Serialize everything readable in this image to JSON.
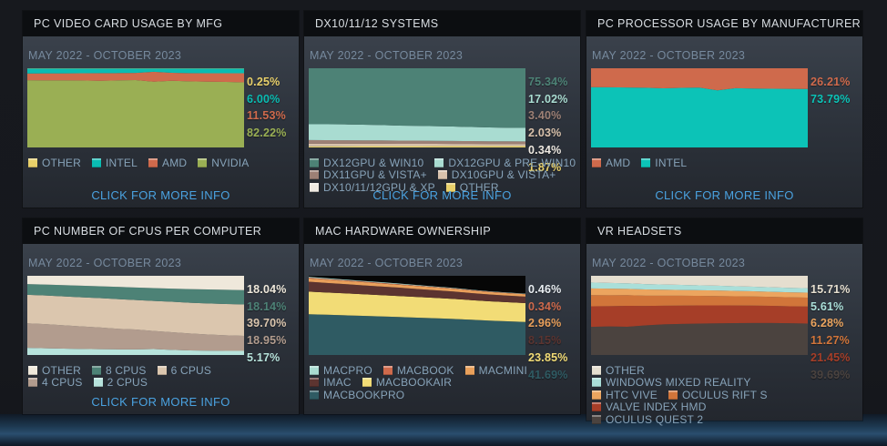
{
  "shared": {
    "more_info_label": "CLICK FOR MORE INFO",
    "date_range": "MAY 2022 - OCTOBER 2023"
  },
  "colors": {
    "link": "#4aa2e0",
    "date_text": "#76899d",
    "legend_text": "#87a3b9",
    "panel_title_bg": "#0c0e11",
    "page_glow": "#2a4e6e"
  },
  "panels": [
    {
      "title": "PC VIDEO CARD USAGE BY MFG",
      "date_range": "MAY 2022 - OCTOBER 2023",
      "has_more_info": true
    },
    {
      "title": "DX10/11/12 SYSTEMS",
      "date_range": "MAY 2022 - OCTOBER 2023",
      "has_more_info": true
    },
    {
      "title": "PC PROCESSOR USAGE BY MANUFACTURER",
      "date_range": "MAY 2022 - OCTOBER 2023",
      "has_more_info": true
    },
    {
      "title": "PC NUMBER OF CPUS PER COMPUTER",
      "date_range": "MAY 2022 - OCTOBER 2023",
      "has_more_info": true
    },
    {
      "title": "MAC HARDWARE OWNERSHIP",
      "date_range": "MAY 2022 - OCTOBER 2023",
      "has_more_info": false
    },
    {
      "title": "VR HEADSETS",
      "date_range": "MAY 2022 - OCTOBER 2023",
      "has_more_info": false
    }
  ],
  "chart_data": [
    {
      "type": "area",
      "stacked": true,
      "title": "PC VIDEO CARD USAGE BY MFG",
      "x_range": [
        "MAY 2022",
        "OCTOBER 2023"
      ],
      "ylim": [
        0,
        100
      ],
      "grid": false,
      "legend_position": "below",
      "series": [
        {
          "name": "OTHER",
          "color": "#e8d06a",
          "value_label": "0.25%",
          "legend_row": 0,
          "values": [
            0.3,
            0.3,
            0.3,
            0.3,
            0.3,
            0.3,
            0.3,
            0.3,
            0.3,
            0.3,
            0.28,
            0.26,
            0.25
          ]
        },
        {
          "name": "INTEL",
          "color": "#0abcb2",
          "value_label": "6.00%",
          "legend_row": 0,
          "values": [
            6.3,
            6.2,
            6.1,
            6.0,
            5.9,
            5.8,
            5.6,
            4.2,
            5.5,
            5.9,
            6.0,
            6.0,
            6.0
          ]
        },
        {
          "name": "AMD",
          "color": "#cf6a4c",
          "value_label": "11.53%",
          "legend_row": 0,
          "values": [
            8.5,
            8.7,
            8.9,
            9.1,
            9.6,
            9.2,
            9.0,
            12.5,
            10.0,
            10.3,
            10.6,
            11.0,
            11.53
          ]
        },
        {
          "name": "NVIDIA",
          "color": "#9aaf54",
          "value_label": "82.22%",
          "legend_row": 0,
          "values": [
            84.9,
            84.8,
            84.7,
            84.6,
            84.2,
            84.7,
            85.1,
            83.0,
            84.2,
            83.5,
            83.12,
            82.74,
            82.22
          ]
        }
      ]
    },
    {
      "type": "area",
      "stacked": true,
      "title": "DX10/11/12 SYSTEMS",
      "x_range": [
        "MAY 2022",
        "OCTOBER 2023"
      ],
      "ylim": [
        0,
        100
      ],
      "grid": false,
      "legend_position": "below",
      "series": [
        {
          "name": "DX12GPU & WIN10",
          "color": "#4d8276",
          "value_label": "75.34%",
          "legend_row": 0,
          "values": [
            70.7,
            70.65,
            70.9,
            71.3,
            71.65,
            72.4,
            72.65,
            73.1,
            73.62,
            74.19,
            74.7,
            75.09,
            75.34
          ]
        },
        {
          "name": "DX12GPU & PRE-WIN10",
          "color": "#a9dcd1",
          "value_label": "17.02%",
          "legend_row": 0,
          "values": [
            20.0,
            20.2,
            20.0,
            19.8,
            19.5,
            19.0,
            18.8,
            18.5,
            18.2,
            17.8,
            17.5,
            17.2,
            17.02
          ]
        },
        {
          "name": "DX11GPU & VISTA+",
          "color": "#9d8075",
          "value_label": "3.40%",
          "legend_row": 1,
          "values": [
            4.5,
            4.4,
            4.3,
            4.2,
            4.1,
            4.0,
            3.9,
            3.8,
            3.7,
            3.6,
            3.5,
            3.45,
            3.4
          ]
        },
        {
          "name": "DX10GPU & VISTA+",
          "color": "#d9c2ac",
          "value_label": "2.03%",
          "legend_row": 1,
          "values": [
            2.8,
            2.7,
            2.7,
            2.6,
            2.6,
            2.5,
            2.5,
            2.4,
            2.3,
            2.2,
            2.1,
            2.05,
            2.03
          ]
        },
        {
          "name": "DX10/11/12GPU & XP",
          "color": "#efeae2",
          "value_label": "0.34%",
          "legend_row": 2,
          "values": [
            0.5,
            0.5,
            0.5,
            0.45,
            0.45,
            0.4,
            0.4,
            0.4,
            0.38,
            0.36,
            0.35,
            0.34,
            0.34
          ]
        },
        {
          "name": "OTHER",
          "color": "#e8d06a",
          "value_label": "1.87%",
          "legend_row": 2,
          "values": [
            1.5,
            1.55,
            1.6,
            1.65,
            1.7,
            1.7,
            1.75,
            1.8,
            1.8,
            1.85,
            1.85,
            1.87,
            1.87
          ]
        }
      ]
    },
    {
      "type": "area",
      "stacked": true,
      "title": "PC PROCESSOR USAGE BY MANUFACTURER",
      "x_range": [
        "MAY 2022",
        "OCTOBER 2023"
      ],
      "ylim": [
        0,
        100
      ],
      "grid": false,
      "legend_position": "below",
      "series": [
        {
          "name": "AMD",
          "color": "#cf6a4c",
          "value_label": "26.21%",
          "legend_row": 0,
          "values": [
            23.8,
            24.0,
            24.3,
            24.6,
            25.3,
            24.7,
            24.4,
            27.8,
            25.2,
            25.6,
            25.9,
            26.05,
            26.21
          ]
        },
        {
          "name": "INTEL",
          "color": "#0cc3b7",
          "value_label": "73.79%",
          "legend_row": 0,
          "values": [
            76.2,
            76.0,
            75.7,
            75.4,
            74.7,
            75.3,
            75.6,
            72.2,
            74.8,
            74.4,
            74.1,
            73.95,
            73.79
          ]
        }
      ]
    },
    {
      "type": "area",
      "stacked": true,
      "title": "PC NUMBER OF CPUS PER COMPUTER",
      "x_range": [
        "MAY 2022",
        "OCTOBER 2023"
      ],
      "ylim": [
        0,
        100
      ],
      "grid": false,
      "legend_position": "below",
      "series": [
        {
          "name": "OTHER",
          "color": "#efe8db",
          "value_label": "18.04%",
          "legend_row": 0,
          "values": [
            10.5,
            11.0,
            11.8,
            12.5,
            13.2,
            14.0,
            14.8,
            15.5,
            16.2,
            16.8,
            17.3,
            17.7,
            18.04
          ]
        },
        {
          "name": "8 CPUS",
          "color": "#4d8276",
          "value_label": "18.14%",
          "legend_row": 0,
          "values": [
            13.5,
            13.8,
            14.2,
            14.6,
            15.0,
            15.4,
            15.8,
            16.2,
            16.6,
            17.2,
            17.6,
            17.9,
            18.14
          ]
        },
        {
          "name": "6 CPUS",
          "color": "#dbc6ae",
          "value_label": "39.70%",
          "legend_row": 0,
          "values": [
            36.0,
            36.2,
            36.5,
            36.8,
            37.0,
            37.5,
            37.2,
            38.0,
            38.5,
            38.8,
            39.2,
            39.5,
            39.7
          ]
        },
        {
          "name": "4 CPUS",
          "color": "#b29c8e",
          "value_label": "18.95%",
          "legend_row": 1,
          "values": [
            31.0,
            30.5,
            29.5,
            28.5,
            27.5,
            26.0,
            25.2,
            22.8,
            22.2,
            21.5,
            20.5,
            19.7,
            18.95
          ]
        },
        {
          "name": "2 CPUS",
          "color": "#b7e3dc",
          "value_label": "5.17%",
          "legend_row": 1,
          "values": [
            9.0,
            8.5,
            8.0,
            7.6,
            7.3,
            7.1,
            7.0,
            7.5,
            6.5,
            5.7,
            5.4,
            5.2,
            5.17
          ]
        }
      ]
    },
    {
      "type": "area",
      "stacked": true,
      "title": "MAC HARDWARE OWNERSHIP",
      "x_range": [
        "MAY 2022",
        "OCTOBER 2023"
      ],
      "ylim": [
        0,
        100
      ],
      "grid": false,
      "legend_position": "below",
      "plot_background": "#060606",
      "series": [
        {
          "name": "MACPRO",
          "color": "#a9dcd1",
          "label_color": "#e9eef2",
          "value_label": "0.46%",
          "legend_row": 0,
          "values": [
            1.0,
            0.95,
            0.9,
            0.85,
            0.8,
            0.75,
            0.7,
            0.65,
            0.6,
            0.55,
            0.5,
            0.48,
            0.46
          ]
        },
        {
          "name": "MACBOOK",
          "color": "#cf6a4c",
          "value_label": "0.34%",
          "legend_row": 0,
          "values": [
            1.0,
            0.95,
            0.9,
            0.85,
            0.8,
            0.72,
            0.65,
            0.6,
            0.55,
            0.48,
            0.42,
            0.38,
            0.34
          ]
        },
        {
          "name": "MACMINI",
          "color": "#e9a05b",
          "value_label": "2.96%",
          "legend_row": 0,
          "values": [
            4.2,
            4.1,
            4.0,
            3.9,
            3.8,
            3.7,
            3.6,
            3.5,
            3.4,
            3.3,
            3.15,
            3.05,
            2.96
          ]
        },
        {
          "name": "IMAC",
          "color": "#5c3430",
          "value_label": "8.15%",
          "legend_row": 1,
          "values": [
            12.5,
            12.1,
            11.7,
            11.3,
            10.9,
            10.5,
            10.1,
            9.7,
            9.3,
            8.9,
            8.6,
            8.35,
            8.15
          ]
        },
        {
          "name": "MACBOOKAIR",
          "color": "#f2dc76",
          "value_label": "23.85%",
          "legend_row": 1,
          "values": [
            28.5,
            28.1,
            27.7,
            27.3,
            26.9,
            26.5,
            26.1,
            25.7,
            25.3,
            24.8,
            24.4,
            24.1,
            23.85
          ]
        },
        {
          "name": "MACBOOKPRO",
          "color": "#2f5b63",
          "value_label": "41.69%",
          "legend_row": 2,
          "values": [
            51.5,
            50.8,
            50.1,
            49.4,
            48.7,
            48.0,
            47.2,
            46.4,
            45.6,
            44.5,
            43.4,
            42.5,
            41.69
          ]
        }
      ]
    },
    {
      "type": "area",
      "stacked": true,
      "title": "VR HEADSETS",
      "x_range": [
        "MAY 2022",
        "OCTOBER 2023"
      ],
      "ylim": [
        0,
        100
      ],
      "grid": false,
      "legend_position": "below",
      "series": [
        {
          "name": "OTHER",
          "color": "#e5decf",
          "value_label": "15.71%",
          "legend_row": 0,
          "values": [
            8.5,
            9.0,
            9.5,
            10.5,
            11.0,
            11.5,
            12.0,
            12.5,
            13.2,
            13.8,
            14.5,
            15.2,
            15.71
          ]
        },
        {
          "name": "WINDOWS MIXED REALITY",
          "color": "#aadfd9",
          "value_label": "5.61%",
          "legend_row": 1,
          "values": [
            7.5,
            7.3,
            7.0,
            6.8,
            6.6,
            6.4,
            6.2,
            6.1,
            5.9,
            5.8,
            5.7,
            5.65,
            5.61
          ]
        },
        {
          "name": "HTC VIVE",
          "color": "#eca55f",
          "value_label": "6.28%",
          "legend_row": 2,
          "values": [
            8.5,
            8.3,
            8.0,
            7.8,
            7.5,
            7.3,
            7.1,
            6.9,
            6.7,
            6.55,
            6.4,
            6.3,
            6.28
          ]
        },
        {
          "name": "OCULUS RIFT S",
          "color": "#d1753a",
          "value_label": "11.27%",
          "legend_row": 2,
          "values": [
            14.0,
            13.7,
            13.4,
            13.0,
            12.7,
            12.4,
            12.1,
            11.9,
            11.7,
            11.5,
            11.35,
            11.3,
            11.27
          ]
        },
        {
          "name": "VALVE INDEX HMD",
          "color": "#a63e28",
          "value_label": "21.45%",
          "legend_row": 3,
          "values": [
            26.0,
            25.7,
            26.4,
            24.5,
            23.5,
            23.2,
            22.9,
            22.6,
            22.3,
            22.0,
            21.7,
            21.5,
            21.45
          ]
        },
        {
          "name": "OCULUS QUEST 2",
          "color": "#4b433f",
          "value_label": "39.69%",
          "legend_row": 4,
          "values": [
            35.5,
            36.0,
            35.7,
            37.4,
            38.7,
            39.2,
            39.7,
            40.0,
            40.2,
            40.35,
            40.35,
            40.05,
            39.69
          ]
        }
      ]
    }
  ]
}
